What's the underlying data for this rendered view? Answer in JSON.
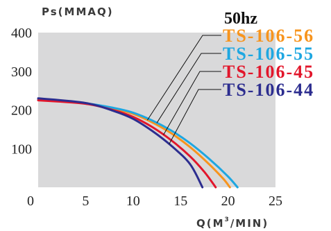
{
  "chart_data": {
    "type": "line",
    "title": "50hz",
    "ylabel": "Ps(MMAQ)",
    "xlabel_main": "Q(M",
    "xlabel_sup": "3",
    "xlabel_tail": "/MIN)",
    "xlim": [
      0,
      25
    ],
    "ylim": [
      0,
      400
    ],
    "x_ticks": [
      0,
      5,
      10,
      15,
      20,
      25
    ],
    "y_ticks": [
      100,
      200,
      300,
      400
    ],
    "grid": false,
    "legend_position": "top-right",
    "series": [
      {
        "name": "TS-106-56",
        "color": "#f7941d",
        "points": [
          [
            0,
            226
          ],
          [
            5,
            217
          ],
          [
            8,
            203
          ],
          [
            10,
            190
          ],
          [
            12,
            168
          ],
          [
            14,
            140
          ],
          [
            16,
            104
          ],
          [
            18,
            60
          ],
          [
            19.5,
            22
          ],
          [
            20.2,
            0
          ]
        ]
      },
      {
        "name": "TS-106-55",
        "color": "#1ea7e1",
        "points": [
          [
            0,
            226
          ],
          [
            5,
            217
          ],
          [
            8,
            205
          ],
          [
            10,
            193
          ],
          [
            12,
            173
          ],
          [
            14,
            147
          ],
          [
            16,
            114
          ],
          [
            18,
            74
          ],
          [
            20,
            28
          ],
          [
            21,
            0
          ]
        ]
      },
      {
        "name": "TS-106-45",
        "color": "#e2162b",
        "points": [
          [
            0,
            225
          ],
          [
            5,
            216
          ],
          [
            8,
            199
          ],
          [
            10,
            182
          ],
          [
            12,
            156
          ],
          [
            14,
            122
          ],
          [
            16,
            80
          ],
          [
            17.5,
            40
          ],
          [
            18.7,
            0
          ]
        ]
      },
      {
        "name": "TS-106-44",
        "color": "#2c2d8f",
        "points": [
          [
            0,
            230
          ],
          [
            5,
            218
          ],
          [
            8,
            197
          ],
          [
            10,
            177
          ],
          [
            12,
            146
          ],
          [
            14,
            108
          ],
          [
            16,
            60
          ],
          [
            17.3,
            0
          ]
        ]
      }
    ]
  }
}
